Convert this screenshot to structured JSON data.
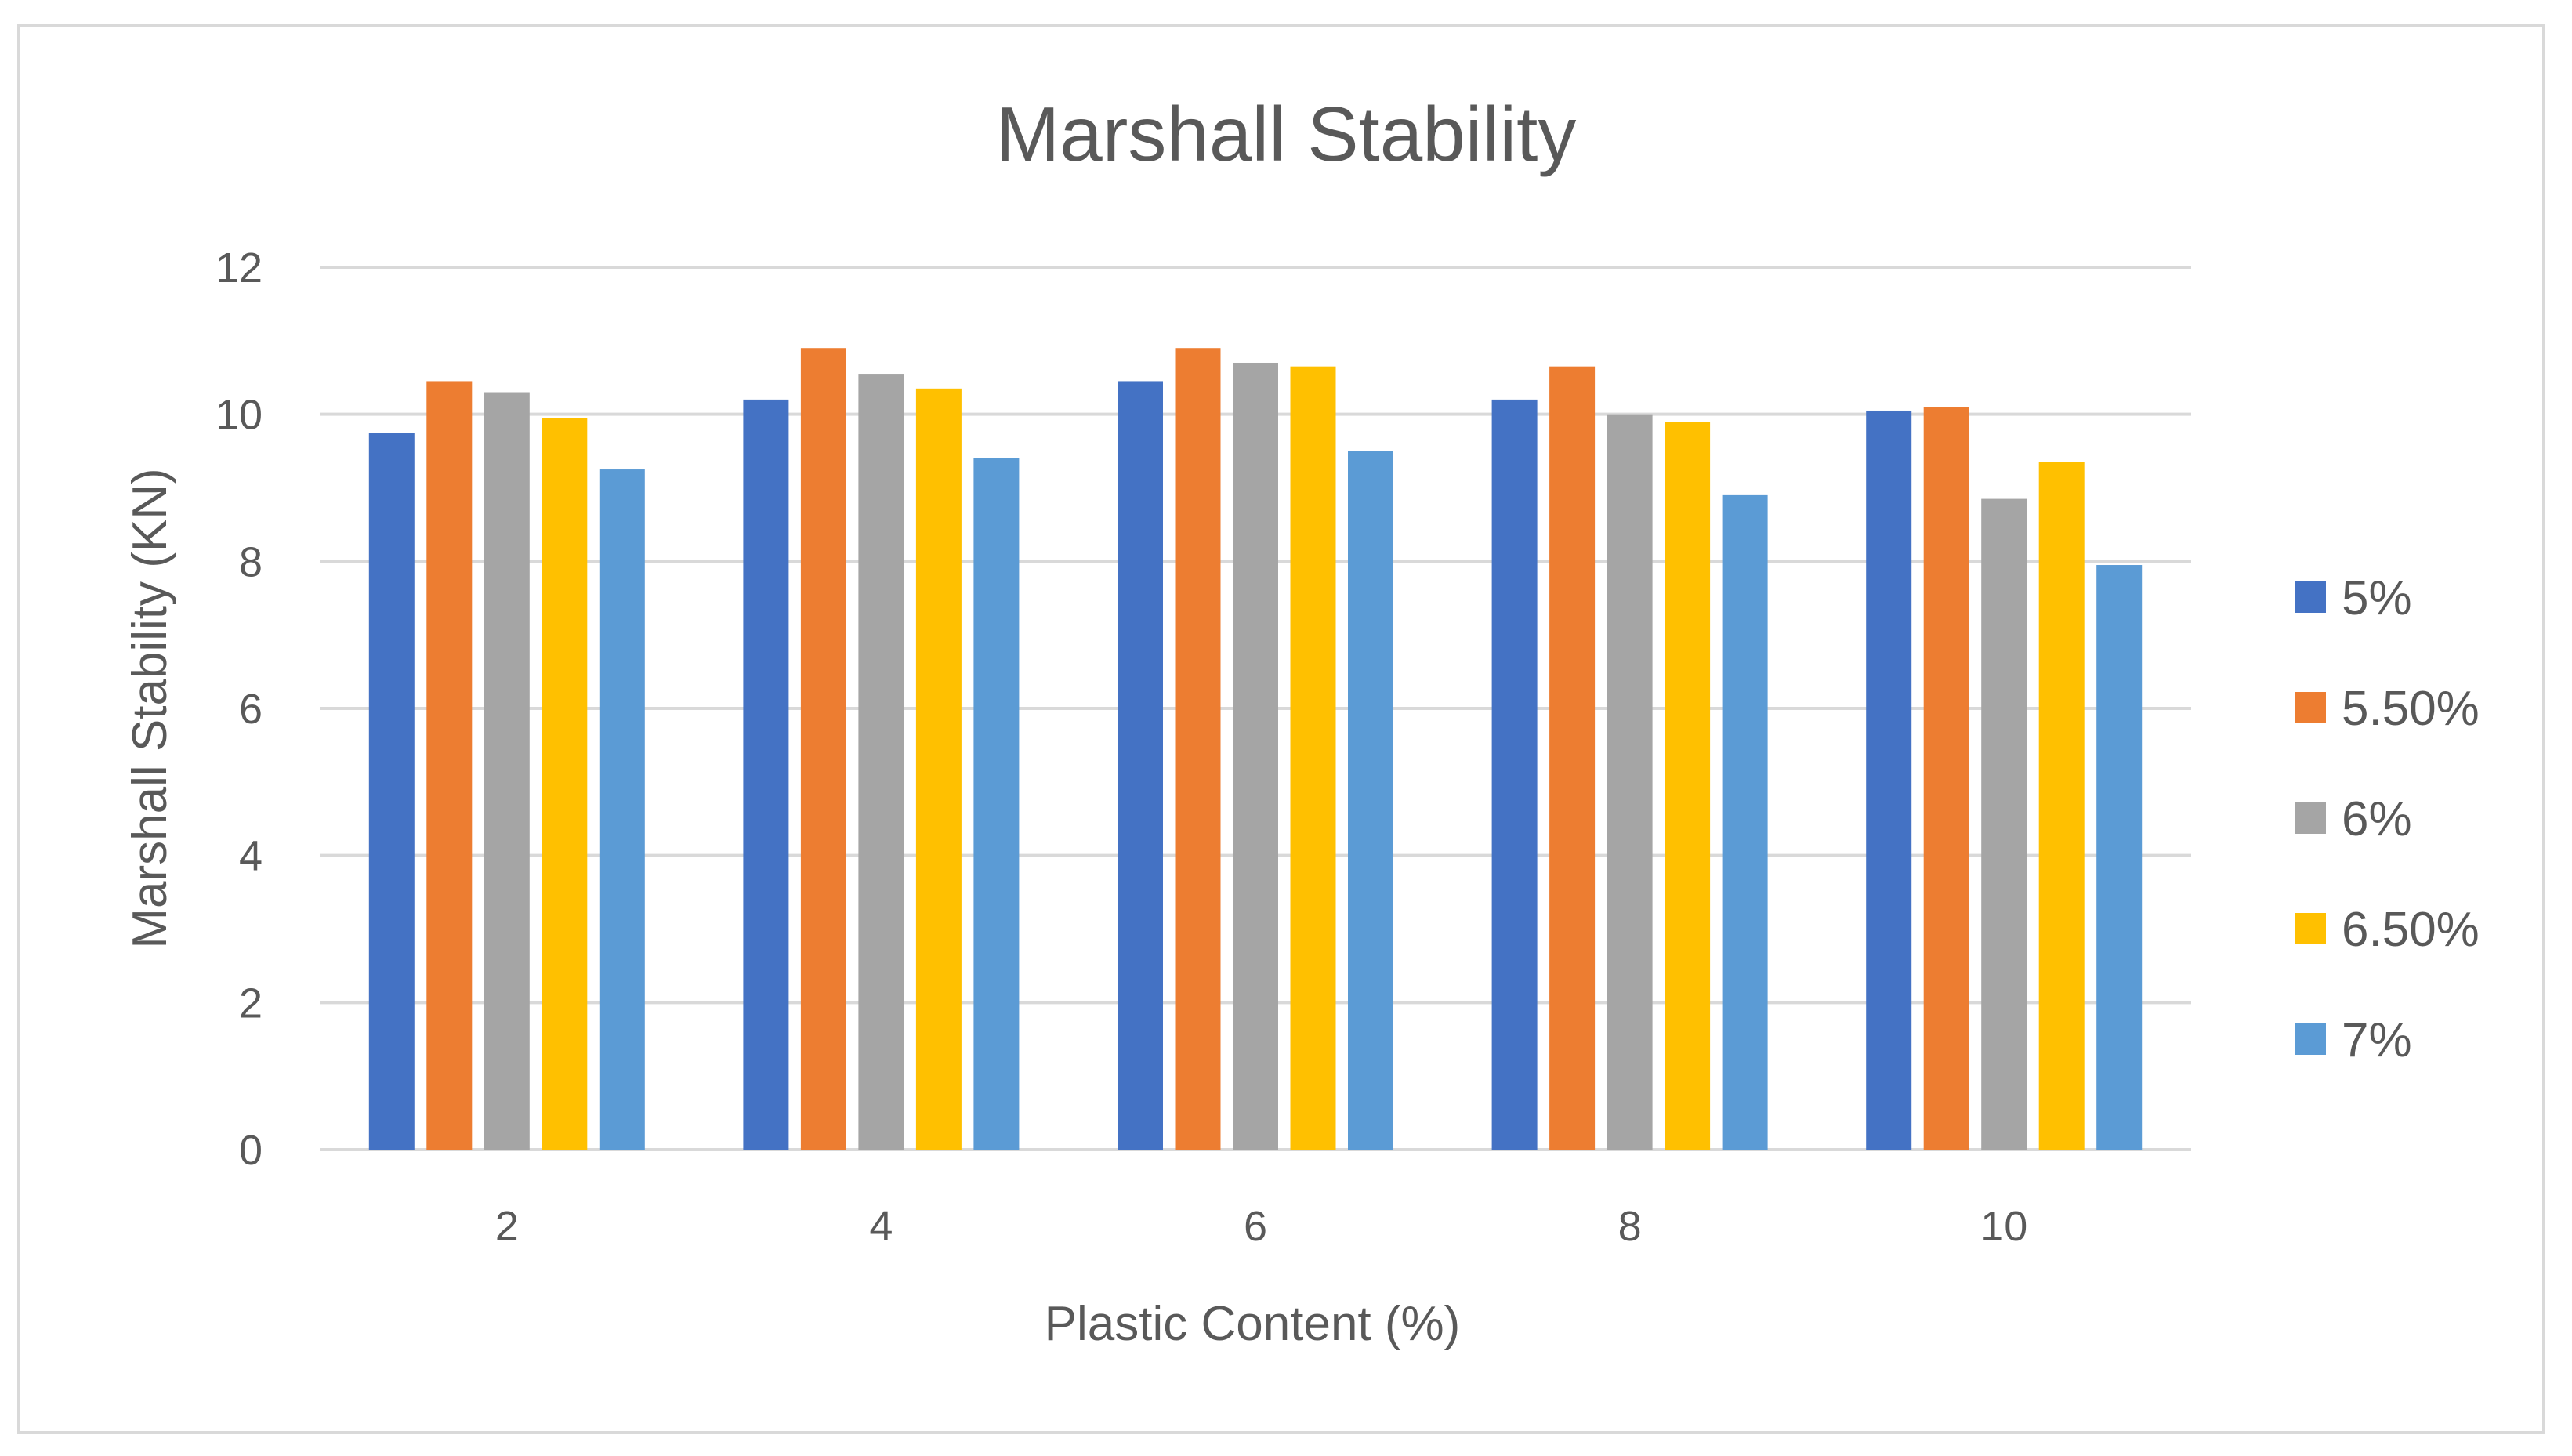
{
  "chart_data": {
    "type": "bar",
    "title": "Marshall Stability",
    "xlabel": "Plastic Content (%)",
    "ylabel": "Marshall Stability (KN)",
    "categories": [
      "2",
      "4",
      "6",
      "8",
      "10"
    ],
    "ylim": [
      0,
      12
    ],
    "yticks": [
      "0",
      "2",
      "4",
      "6",
      "8",
      "10",
      "12"
    ],
    "grid": true,
    "legend_position": "right",
    "series": [
      {
        "name": "5%",
        "color": "#4472c4",
        "values": [
          9.75,
          10.2,
          10.45,
          10.2,
          10.05
        ]
      },
      {
        "name": "5.50%",
        "color": "#ed7d31",
        "values": [
          10.45,
          10.9,
          10.9,
          10.65,
          10.1
        ]
      },
      {
        "name": "6%",
        "color": "#a5a5a5",
        "values": [
          10.3,
          10.55,
          10.7,
          10.0,
          8.85
        ]
      },
      {
        "name": "6.50%",
        "color": "#ffc000",
        "values": [
          9.95,
          10.35,
          10.65,
          9.9,
          9.35
        ]
      },
      {
        "name": "7%",
        "color": "#5b9bd5",
        "values": [
          9.25,
          9.4,
          9.5,
          8.9,
          7.95
        ]
      }
    ]
  }
}
